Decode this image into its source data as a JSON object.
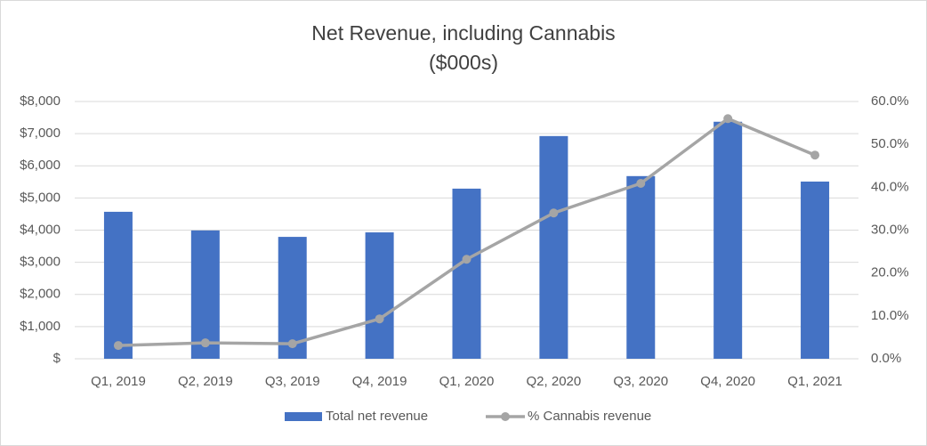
{
  "chart_data": {
    "type": "bar",
    "title": "Net Revenue, including Cannabis",
    "subtitle": "($000s)",
    "categories": [
      "Q1, 2019",
      "Q2, 2019",
      "Q3, 2019",
      "Q4, 2019",
      "Q1, 2020",
      "Q2, 2020",
      "Q3, 2020",
      "Q4, 2020",
      "Q1, 2021"
    ],
    "series": [
      {
        "name": "Total net revenue",
        "type": "bar",
        "color": "#4472c4",
        "values": [
          4570,
          3990,
          3790,
          3930,
          5290,
          6925,
          5680,
          7370,
          5510
        ]
      },
      {
        "name": "% Cannabis revenue",
        "type": "line",
        "axis": "y2",
        "color": "#a5a5a5",
        "values": [
          3.1,
          3.7,
          3.5,
          9.3,
          23.2,
          34.0,
          40.9,
          56.0,
          47.5
        ]
      }
    ],
    "ylim": [
      0,
      8000
    ],
    "yticks": [
      {
        "value": 0,
        "label": "$"
      },
      {
        "value": 1000,
        "label": "$1,000"
      },
      {
        "value": 2000,
        "label": "$2,000"
      },
      {
        "value": 3000,
        "label": "$3,000"
      },
      {
        "value": 4000,
        "label": "$4,000"
      },
      {
        "value": 5000,
        "label": "$5,000"
      },
      {
        "value": 6000,
        "label": "$6,000"
      },
      {
        "value": 7000,
        "label": "$7,000"
      },
      {
        "value": 8000,
        "label": "$8,000"
      }
    ],
    "y2lim": [
      0,
      60
    ],
    "y2ticks": [
      {
        "value": 0,
        "label": "0.0%"
      },
      {
        "value": 10,
        "label": "10.0%"
      },
      {
        "value": 20,
        "label": "20.0%"
      },
      {
        "value": 30,
        "label": "30.0%"
      },
      {
        "value": 40,
        "label": "40.0%"
      },
      {
        "value": 50,
        "label": "50.0%"
      },
      {
        "value": 60,
        "label": "60.0%"
      }
    ],
    "grid": true,
    "legend": "bottom"
  }
}
